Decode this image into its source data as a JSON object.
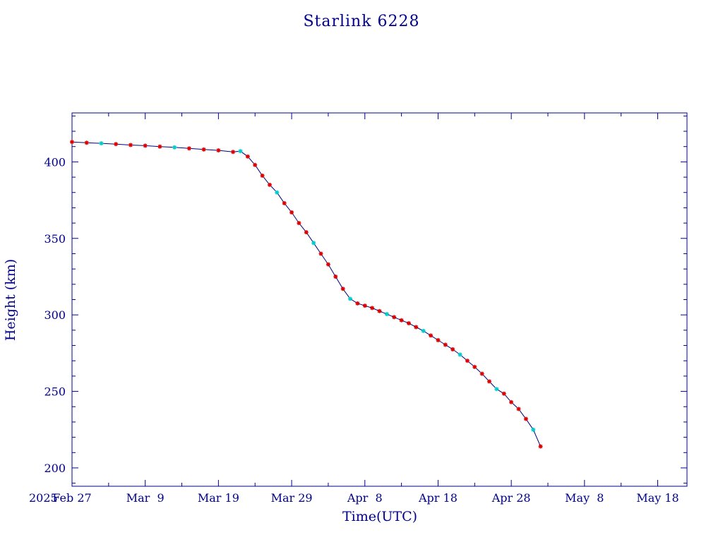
{
  "chart_data": {
    "type": "scatter",
    "title": "Starlink 6228",
    "xlabel": "Time(UTC)",
    "ylabel": "Height (km)",
    "year_label": "2025",
    "x_tick_labels": [
      "Feb 27",
      "Mar  9",
      "Mar 19",
      "Mar 29",
      "Apr  8",
      "Apr 18",
      "Apr 28",
      "May  8",
      "May 18"
    ],
    "x_tick_dates": [
      "2025-02-27",
      "2025-03-09",
      "2025-03-19",
      "2025-03-29",
      "2025-04-08",
      "2025-04-18",
      "2025-04-28",
      "2025-05-08",
      "2025-05-18"
    ],
    "xlim": [
      "2025-02-27",
      "2025-05-22"
    ],
    "ylim": [
      188,
      432
    ],
    "y_ticks": [
      200,
      250,
      300,
      350,
      400
    ],
    "grid": false,
    "colors": {
      "axes": "#00008b",
      "line": "#000080",
      "point_primary": "#dd0000",
      "point_secondary": "#00cccc"
    },
    "series": [
      {
        "points": [
          [
            "2025-02-27",
            413.0
          ],
          [
            "2025-03-01",
            412.5
          ],
          [
            "2025-03-03",
            412.1
          ],
          [
            "2025-03-05",
            411.6
          ],
          [
            "2025-03-07",
            411.0
          ],
          [
            "2025-03-09",
            410.6
          ],
          [
            "2025-03-11",
            410.0
          ],
          [
            "2025-03-13",
            409.5
          ],
          [
            "2025-03-15",
            408.8
          ],
          [
            "2025-03-17",
            408.1
          ],
          [
            "2025-03-19",
            407.5
          ],
          [
            "2025-03-21",
            406.5
          ],
          [
            "2025-03-22",
            407.0
          ],
          [
            "2025-03-23",
            403.5
          ],
          [
            "2025-03-24",
            398.0
          ],
          [
            "2025-03-25",
            391.0
          ],
          [
            "2025-03-26",
            385.0
          ],
          [
            "2025-03-27",
            380.0
          ],
          [
            "2025-03-28",
            373.0
          ],
          [
            "2025-03-29",
            367.0
          ],
          [
            "2025-03-30",
            360.0
          ],
          [
            "2025-03-31",
            354.0
          ],
          [
            "2025-04-01",
            347.0
          ],
          [
            "2025-04-02",
            340.0
          ],
          [
            "2025-04-03",
            333.0
          ],
          [
            "2025-04-04",
            325.0
          ],
          [
            "2025-04-05",
            317.0
          ],
          [
            "2025-04-06",
            310.5
          ],
          [
            "2025-04-07",
            307.5
          ],
          [
            "2025-04-08",
            306.0
          ],
          [
            "2025-04-09",
            304.5
          ],
          [
            "2025-04-10",
            302.5
          ],
          [
            "2025-04-11",
            300.5
          ],
          [
            "2025-04-12",
            298.5
          ],
          [
            "2025-04-13",
            296.5
          ],
          [
            "2025-04-14",
            294.5
          ],
          [
            "2025-04-15",
            292.0
          ],
          [
            "2025-04-16",
            289.5
          ],
          [
            "2025-04-17",
            286.5
          ],
          [
            "2025-04-18",
            283.5
          ],
          [
            "2025-04-19",
            280.5
          ],
          [
            "2025-04-20",
            277.5
          ],
          [
            "2025-04-21",
            274.0
          ],
          [
            "2025-04-22",
            270.0
          ],
          [
            "2025-04-23",
            266.0
          ],
          [
            "2025-04-24",
            261.5
          ],
          [
            "2025-04-25",
            256.5
          ],
          [
            "2025-04-26",
            251.5
          ],
          [
            "2025-04-27",
            248.5
          ],
          [
            "2025-04-28",
            243.0
          ],
          [
            "2025-04-29",
            238.5
          ],
          [
            "2025-04-30",
            232.0
          ],
          [
            "2025-05-01",
            225.0
          ],
          [
            "2025-05-02",
            214.0
          ]
        ]
      }
    ]
  }
}
